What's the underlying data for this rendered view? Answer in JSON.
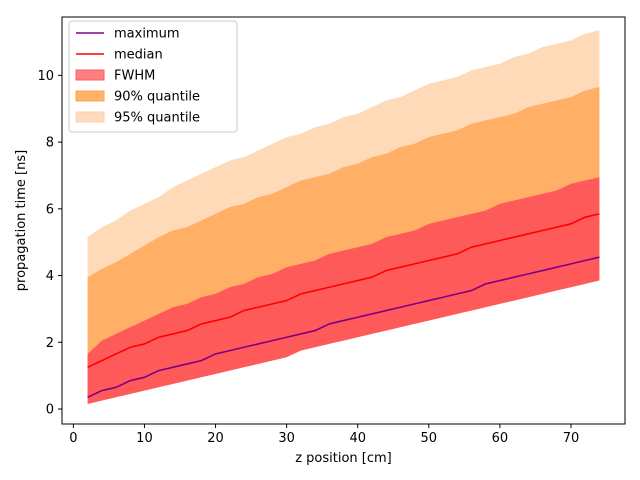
{
  "chart_data": {
    "type": "area",
    "xlabel": "z position [cm]",
    "ylabel": "propagation time [ns]",
    "xlim": [
      -1.6,
      77.6
    ],
    "ylim": [
      -0.45,
      11.75
    ],
    "xticks": [
      0,
      10,
      20,
      30,
      40,
      50,
      60,
      70
    ],
    "yticks": [
      0,
      2,
      4,
      6,
      8,
      10
    ],
    "grid": false,
    "legend_position": "top-left",
    "x": [
      2,
      4,
      6,
      8,
      10,
      12,
      14,
      16,
      18,
      20,
      22,
      24,
      26,
      28,
      30,
      32,
      34,
      36,
      38,
      40,
      42,
      44,
      46,
      48,
      50,
      52,
      54,
      56,
      58,
      60,
      62,
      64,
      66,
      68,
      70,
      72,
      74
    ],
    "lines": [
      {
        "name": "maximum",
        "color": "#800080",
        "values": [
          0.35,
          0.55,
          0.65,
          0.85,
          0.95,
          1.15,
          1.25,
          1.35,
          1.45,
          1.65,
          1.75,
          1.85,
          1.95,
          2.05,
          2.15,
          2.25,
          2.35,
          2.55,
          2.65,
          2.75,
          2.85,
          2.95,
          3.05,
          3.15,
          3.25,
          3.35,
          3.45,
          3.55,
          3.75,
          3.85,
          3.95,
          4.05,
          4.15,
          4.25,
          4.35,
          4.45,
          4.55
        ]
      },
      {
        "name": "median",
        "color": "#ff0000",
        "values": [
          1.25,
          1.45,
          1.65,
          1.85,
          1.95,
          2.15,
          2.25,
          2.35,
          2.55,
          2.65,
          2.75,
          2.95,
          3.05,
          3.15,
          3.25,
          3.45,
          3.55,
          3.65,
          3.75,
          3.85,
          3.95,
          4.15,
          4.25,
          4.35,
          4.45,
          4.55,
          4.65,
          4.85,
          4.95,
          5.05,
          5.15,
          5.25,
          5.35,
          5.45,
          5.55,
          5.75,
          5.85
        ]
      }
    ],
    "bands": [
      {
        "name": "95% quantile",
        "color": "#ffdab9",
        "lower": [
          0.35,
          0.55,
          0.65,
          0.85,
          0.95,
          1.15,
          1.25,
          1.35,
          1.45,
          1.65,
          1.75,
          1.85,
          1.95,
          2.05,
          2.15,
          2.25,
          2.35,
          2.55,
          2.65,
          2.75,
          2.85,
          2.95,
          3.05,
          3.15,
          3.25,
          3.35,
          3.45,
          3.55,
          3.75,
          3.85,
          3.95,
          4.05,
          4.15,
          4.25,
          4.35,
          4.45,
          4.55
        ],
        "upper": [
          5.15,
          5.45,
          5.65,
          5.95,
          6.15,
          6.35,
          6.65,
          6.85,
          7.05,
          7.25,
          7.45,
          7.55,
          7.75,
          7.95,
          8.15,
          8.25,
          8.45,
          8.55,
          8.75,
          8.85,
          9.05,
          9.25,
          9.35,
          9.55,
          9.75,
          9.85,
          9.95,
          10.15,
          10.25,
          10.35,
          10.55,
          10.65,
          10.85,
          10.95,
          11.05,
          11.25,
          11.35
        ]
      },
      {
        "name": "90% quantile",
        "color": "#ffaf66",
        "lower": [
          0.35,
          0.55,
          0.65,
          0.85,
          0.95,
          1.15,
          1.25,
          1.35,
          1.45,
          1.65,
          1.75,
          1.85,
          1.95,
          2.05,
          2.15,
          2.25,
          2.35,
          2.55,
          2.65,
          2.75,
          2.85,
          2.95,
          3.05,
          3.15,
          3.25,
          3.35,
          3.45,
          3.55,
          3.75,
          3.85,
          3.95,
          4.05,
          4.15,
          4.25,
          4.35,
          4.45,
          4.55
        ],
        "upper": [
          3.95,
          4.2,
          4.4,
          4.65,
          4.9,
          5.15,
          5.35,
          5.45,
          5.65,
          5.85,
          6.05,
          6.15,
          6.35,
          6.45,
          6.65,
          6.85,
          6.95,
          7.05,
          7.25,
          7.35,
          7.55,
          7.65,
          7.85,
          7.95,
          8.15,
          8.25,
          8.35,
          8.55,
          8.65,
          8.75,
          8.85,
          9.05,
          9.15,
          9.25,
          9.35,
          9.55,
          9.65
        ]
      },
      {
        "name": "FWHM",
        "color": "#ff5a5a",
        "lower": [
          0.15,
          0.25,
          0.35,
          0.45,
          0.55,
          0.65,
          0.75,
          0.85,
          0.95,
          1.05,
          1.15,
          1.25,
          1.35,
          1.45,
          1.55,
          1.75,
          1.85,
          1.95,
          2.05,
          2.15,
          2.25,
          2.35,
          2.45,
          2.55,
          2.65,
          2.75,
          2.85,
          2.95,
          3.05,
          3.15,
          3.25,
          3.35,
          3.45,
          3.55,
          3.65,
          3.75,
          3.85
        ],
        "upper": [
          1.65,
          2.05,
          2.25,
          2.45,
          2.65,
          2.85,
          3.05,
          3.15,
          3.35,
          3.45,
          3.65,
          3.75,
          3.95,
          4.05,
          4.25,
          4.35,
          4.45,
          4.65,
          4.75,
          4.85,
          4.95,
          5.15,
          5.25,
          5.35,
          5.55,
          5.65,
          5.75,
          5.85,
          5.95,
          6.15,
          6.25,
          6.35,
          6.45,
          6.55,
          6.75,
          6.85,
          6.95
        ]
      }
    ],
    "legend": [
      {
        "label": "maximum",
        "kind": "line",
        "color": "#800080"
      },
      {
        "label": "median",
        "kind": "line",
        "color": "#ff0000"
      },
      {
        "label": "FWHM",
        "kind": "patch",
        "color": "#ff8080",
        "edge": "#ff5a5a"
      },
      {
        "label": "90% quantile",
        "kind": "patch",
        "color": "#ffb26a",
        "edge": "#ffa24d"
      },
      {
        "label": "95% quantile",
        "kind": "patch",
        "color": "#ffdcbf",
        "edge": "#ffcfa6"
      }
    ]
  }
}
